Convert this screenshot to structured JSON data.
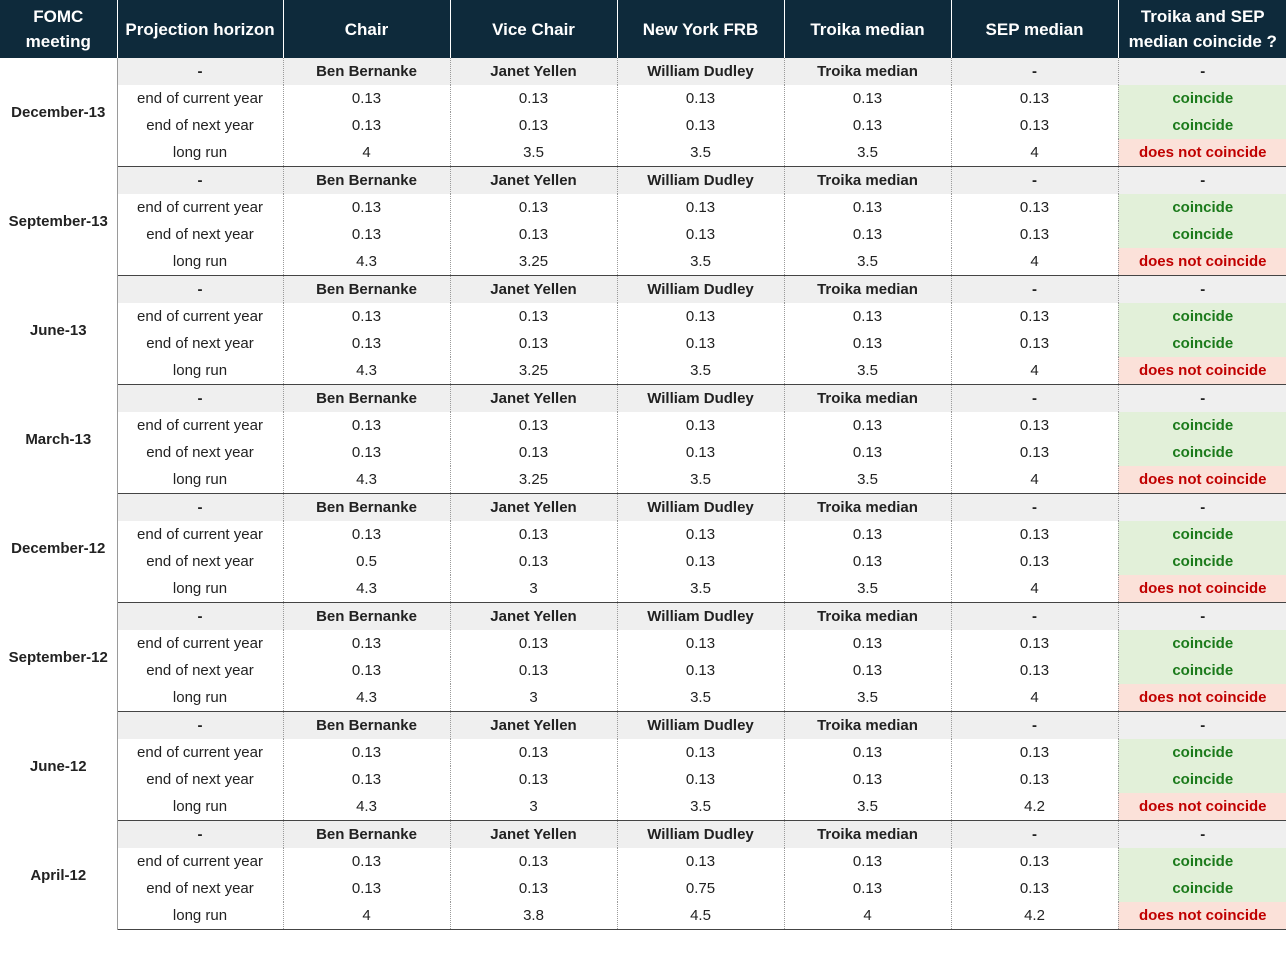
{
  "headers": [
    "FOMC meeting",
    "Projection horizon",
    "Chair",
    "Vice Chair",
    "New York FRB",
    "Troika median",
    "SEP median",
    "Troika and SEP median coincide ?"
  ],
  "status_colors": {
    "coincide_text": "#1b7a1b",
    "coincide_bg": "#e2f0d9",
    "not_text": "#c00000",
    "not_bg": "#fbe1d9",
    "header_bg": "#0e2a3b"
  },
  "groups": [
    {
      "meeting": "December-13",
      "rows": [
        [
          "-",
          "Ben Bernanke",
          "Janet Yellen",
          "William Dudley",
          "Troika median",
          "-",
          "-"
        ],
        [
          "end of current year",
          "0.13",
          "0.13",
          "0.13",
          "0.13",
          "0.13",
          "coincide"
        ],
        [
          "end of next year",
          "0.13",
          "0.13",
          "0.13",
          "0.13",
          "0.13",
          "coincide"
        ],
        [
          "long run",
          "4",
          "3.5",
          "3.5",
          "3.5",
          "4",
          "does not coincide"
        ]
      ]
    },
    {
      "meeting": "September-13",
      "rows": [
        [
          "-",
          "Ben Bernanke",
          "Janet Yellen",
          "William Dudley",
          "Troika median",
          "-",
          "-"
        ],
        [
          "end of current year",
          "0.13",
          "0.13",
          "0.13",
          "0.13",
          "0.13",
          "coincide"
        ],
        [
          "end of next year",
          "0.13",
          "0.13",
          "0.13",
          "0.13",
          "0.13",
          "coincide"
        ],
        [
          "long run",
          "4.3",
          "3.25",
          "3.5",
          "3.5",
          "4",
          "does not coincide"
        ]
      ]
    },
    {
      "meeting": "June-13",
      "rows": [
        [
          "-",
          "Ben Bernanke",
          "Janet Yellen",
          "William Dudley",
          "Troika median",
          "-",
          "-"
        ],
        [
          "end of current year",
          "0.13",
          "0.13",
          "0.13",
          "0.13",
          "0.13",
          "coincide"
        ],
        [
          "end of next year",
          "0.13",
          "0.13",
          "0.13",
          "0.13",
          "0.13",
          "coincide"
        ],
        [
          "long run",
          "4.3",
          "3.25",
          "3.5",
          "3.5",
          "4",
          "does not coincide"
        ]
      ]
    },
    {
      "meeting": "March-13",
      "rows": [
        [
          "-",
          "Ben Bernanke",
          "Janet Yellen",
          "William Dudley",
          "Troika median",
          "-",
          "-"
        ],
        [
          "end of current year",
          "0.13",
          "0.13",
          "0.13",
          "0.13",
          "0.13",
          "coincide"
        ],
        [
          "end of next year",
          "0.13",
          "0.13",
          "0.13",
          "0.13",
          "0.13",
          "coincide"
        ],
        [
          "long run",
          "4.3",
          "3.25",
          "3.5",
          "3.5",
          "4",
          "does not coincide"
        ]
      ]
    },
    {
      "meeting": "December-12",
      "rows": [
        [
          "-",
          "Ben Bernanke",
          "Janet Yellen",
          "William Dudley",
          "Troika median",
          "-",
          "-"
        ],
        [
          "end of current year",
          "0.13",
          "0.13",
          "0.13",
          "0.13",
          "0.13",
          "coincide"
        ],
        [
          "end of next year",
          "0.5",
          "0.13",
          "0.13",
          "0.13",
          "0.13",
          "coincide"
        ],
        [
          "long run",
          "4.3",
          "3",
          "3.5",
          "3.5",
          "4",
          "does not coincide"
        ]
      ]
    },
    {
      "meeting": "September-12",
      "rows": [
        [
          "-",
          "Ben Bernanke",
          "Janet Yellen",
          "William Dudley",
          "Troika median",
          "-",
          "-"
        ],
        [
          "end of current year",
          "0.13",
          "0.13",
          "0.13",
          "0.13",
          "0.13",
          "coincide"
        ],
        [
          "end of next year",
          "0.13",
          "0.13",
          "0.13",
          "0.13",
          "0.13",
          "coincide"
        ],
        [
          "long run",
          "4.3",
          "3",
          "3.5",
          "3.5",
          "4",
          "does not coincide"
        ]
      ]
    },
    {
      "meeting": "June-12",
      "rows": [
        [
          "-",
          "Ben Bernanke",
          "Janet Yellen",
          "William Dudley",
          "Troika median",
          "-",
          "-"
        ],
        [
          "end of current year",
          "0.13",
          "0.13",
          "0.13",
          "0.13",
          "0.13",
          "coincide"
        ],
        [
          "end of next year",
          "0.13",
          "0.13",
          "0.13",
          "0.13",
          "0.13",
          "coincide"
        ],
        [
          "long run",
          "4.3",
          "3",
          "3.5",
          "3.5",
          "4.2",
          "does not coincide"
        ]
      ]
    },
    {
      "meeting": "April-12",
      "rows": [
        [
          "-",
          "Ben Bernanke",
          "Janet Yellen",
          "William Dudley",
          "Troika median",
          "-",
          "-"
        ],
        [
          "end of current year",
          "0.13",
          "0.13",
          "0.13",
          "0.13",
          "0.13",
          "coincide"
        ],
        [
          "end of next year",
          "0.13",
          "0.13",
          "0.75",
          "0.13",
          "0.13",
          "coincide"
        ],
        [
          "long run",
          "4",
          "3.8",
          "4.5",
          "4",
          "4.2",
          "does not coincide"
        ]
      ]
    }
  ]
}
